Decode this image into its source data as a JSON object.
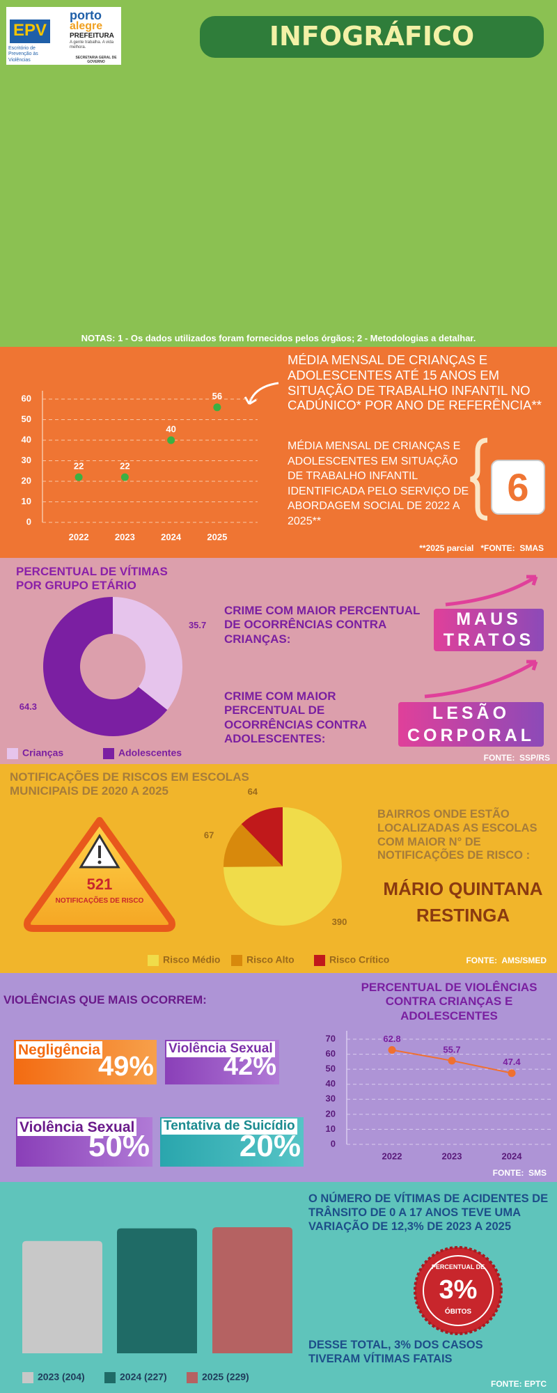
{
  "header": {
    "epv": "EPV",
    "epv_sub": "Escritório de Prevenção às Violências",
    "poa_1": "porto",
    "poa_2": "alegre",
    "prefeitura": "PREFEITURA",
    "slogan": "A gente trabalha. A vida melhora.",
    "secretaria": "SECRETARIA GERAL DE GOVERNO",
    "title": "INFOGRÁFICO"
  },
  "notes": "NOTAS: 1 - Os dados utilizados foram fornecidos pelos órgãos; 2 - Metodologias a detalhar.",
  "trabalho_infantil": {
    "abordagem_title": "MÉDIA MENSAL DE CRIANÇAS E ADOLESCENTES  EM SITUAÇÃO DE TRABALHO INFANTIL IDENTIFICADA PELO SERVIÇO DE ABORDAGEM SOCIAL DE 2022 A 2025**",
    "abordagem_value": 6,
    "footnote": "**2025 parcial   *FONTE:  SMAS"
  },
  "crimes": {
    "criancas_text": "CRIME COM MAIOR PERCENTUAL DE OCORRÊNCIAS CONTRA CRIANÇAS:",
    "criancas_crime": [
      "MAUS",
      "TRATOS"
    ],
    "adolescentes_text": "CRIME COM MAIOR PERCENTUAL DE OCORRÊNCIAS CONTRA ADOLESCENTES:",
    "adolescentes_crime": [
      "LESÃO",
      "CORPORAL"
    ],
    "source": "FONTE:  SSP/RS"
  },
  "escolas": {
    "total": 521,
    "total_label": "NOTIFICAÇÕES DE RISCO",
    "bairros_title": "BAIRROS ONDE ESTÃO LOCALIZADAS AS ESCOLAS COM MAIOR N° DE NOTIFICAÇÕES DE RISCO :",
    "bairros": [
      "MÁRIO QUINTANA",
      "RESTINGA"
    ],
    "source": "FONTE:  AMS/SMED"
  },
  "violencias": {
    "title": "VIOLÊNCIAS QUE MAIS OCORREM:",
    "items": [
      {
        "label": "Negligência",
        "value": "49%"
      },
      {
        "label": "Violência Sexual",
        "value": "42%"
      },
      {
        "label": "Violência Sexual",
        "value": "50%"
      },
      {
        "label": "Tentativa de Suicídio",
        "value": "20%"
      }
    ],
    "source": "FONTE:  SMS"
  },
  "transito": {
    "text": "O NÚMERO DE VÍTIMAS DE ACIDENTES DE TRÂNSITO DE  0 A 17 ANOS TEVE UMA VARIAÇÃO DE 12,3% DE 2023 A 2025",
    "stamp_top": "PERCENTUAL DE",
    "stamp_value": "3%",
    "stamp_bottom": "ÓBITOS",
    "text_fatal": "DESSE TOTAL, 3%  DOS CASOS TIVERAM VÍTIMAS FATAIS",
    "source": "FONTE: EPTC"
  },
  "chart_data": [
    {
      "type": "scatter",
      "title": "MÉDIA MENSAL DE CRIANÇAS  E ADOLESCENTES  ATÉ 15 ANOS EM SITUAÇÃO DE TRABALHO INFANTIL NO CADÚNICO* POR ANO DE REFERÊNCIA**",
      "categories": [
        "2022",
        "2023",
        "2024",
        "2025"
      ],
      "values": [
        22,
        22,
        40,
        56
      ],
      "color": "#3cb043",
      "ylim": [
        0,
        60
      ],
      "yticks": [
        0,
        10,
        20,
        30,
        40,
        50,
        60
      ],
      "grid": true
    },
    {
      "type": "donut",
      "title": "PERCENTUAL DE VÍTIMAS POR GRUPO ETÁRIO",
      "categories": [
        "Crianças",
        "Adolescentes"
      ],
      "values": [
        35.7,
        64.3
      ],
      "colors": [
        "#e6c4ec",
        "#7b1fa2"
      ]
    },
    {
      "type": "pie",
      "title": "NOTIFICAÇÕES DE RISCOS EM ESCOLAS MUNICIPAIS DE 2020 A 2025",
      "categories": [
        "Risco Médio",
        "Risco Alto",
        "Risco Crítico"
      ],
      "values": [
        390,
        67,
        64
      ],
      "colors": [
        "#f0dc4a",
        "#d8890c",
        "#c0191b"
      ]
    },
    {
      "type": "line",
      "title": "PERCENTUAL DE VIOLÊNCIAS CONTRA CRIANÇAS E ADOLESCENTES",
      "categories": [
        "2022",
        "2023",
        "2024"
      ],
      "values": [
        62.8,
        55.7,
        47.4
      ],
      "color": "#f07030",
      "ylim": [
        0,
        70
      ],
      "yticks": [
        0,
        10,
        20,
        30,
        40,
        50,
        60,
        70
      ],
      "grid": true
    },
    {
      "type": "bar",
      "series": [
        {
          "name": "2023 (204)",
          "color": "#c8c8c8",
          "values": [
            204
          ]
        },
        {
          "name": "2024 (227)",
          "color": "#1f6b66",
          "values": [
            227
          ]
        },
        {
          "name": "2025 (229)",
          "color": "#b56262",
          "values": [
            229
          ]
        }
      ]
    }
  ]
}
